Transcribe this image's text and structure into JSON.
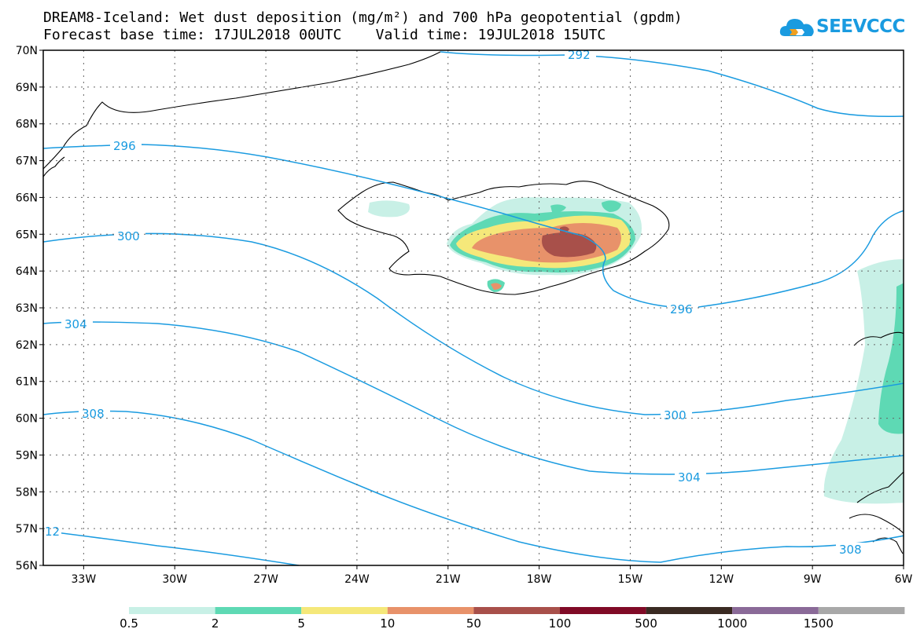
{
  "header": {
    "title_line1": "DREAM8-Iceland: Wet dust deposition (mg/m²) and 700 hPa geopotential (gpdm)",
    "title_line2": "Forecast base time: 17JUL2018 00UTC    Valid time: 19JUL2018 15UTC"
  },
  "logo": {
    "text": "SEEVCCC",
    "color": "#1a9be0"
  },
  "map": {
    "lon_range": [
      -34.33,
      -6
    ],
    "lat_range": [
      56,
      70
    ],
    "x_ticks": [
      "33W",
      "30W",
      "27W",
      "24W",
      "21W",
      "18W",
      "15W",
      "12W",
      "9W",
      "6W"
    ],
    "y_ticks": [
      "56N",
      "57N",
      "58N",
      "59N",
      "60N",
      "61N",
      "62N",
      "63N",
      "64N",
      "65N",
      "66N",
      "67N",
      "68N",
      "69N",
      "70N"
    ],
    "contour_color": "#1a9be0",
    "contour_labels": [
      "292",
      "296",
      "300",
      "304",
      "308",
      "296",
      "300",
      "304",
      "308",
      "12"
    ]
  },
  "colorbar": {
    "colors": [
      "#c8f0e6",
      "#5ed9b4",
      "#f5e87a",
      "#e8926a",
      "#a8504a",
      "#800a26",
      "#3a2a22",
      "#8a6a98",
      "#a8a8a8"
    ],
    "labels": [
      "0.5",
      "2",
      "5",
      "10",
      "50",
      "100",
      "500",
      "1000",
      "1500"
    ]
  }
}
